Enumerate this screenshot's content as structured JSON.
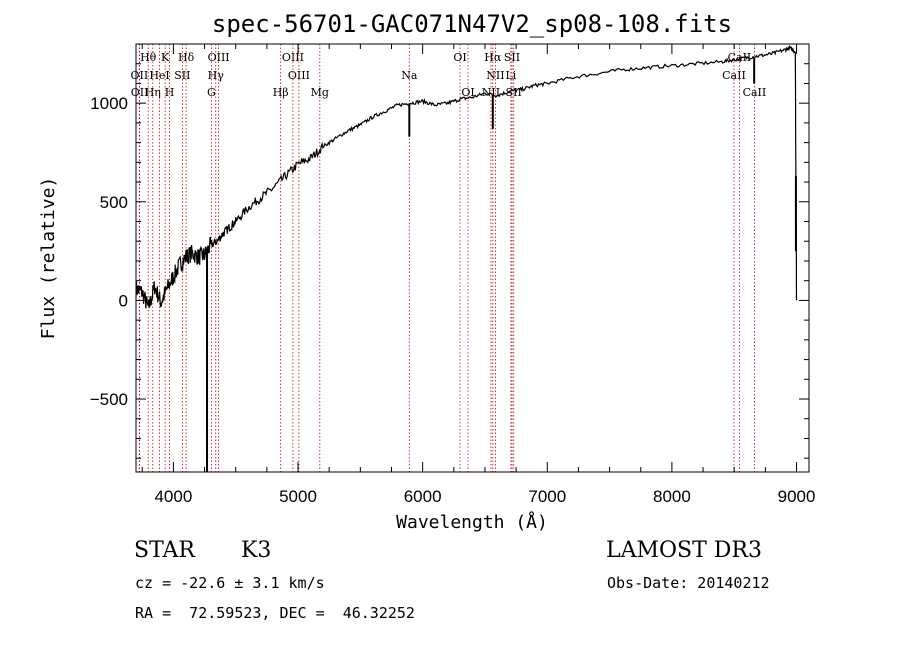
{
  "chart_data": {
    "type": "line",
    "title": "spec-56701-GAC071N47V2_sp08-108.fits",
    "xlabel": "Wavelength (Å)",
    "ylabel": "Flux (relative)",
    "xlim": [
      3700,
      9100
    ],
    "ylim": [
      -870,
      1300
    ],
    "xticks": [
      4000,
      5000,
      6000,
      7000,
      8000,
      9000
    ],
    "yticks": [
      -500,
      0,
      500,
      1000
    ],
    "series": [
      {
        "name": "flux",
        "x": [
          3700,
          3750,
          3800,
          3850,
          3900,
          3950,
          4000,
          4050,
          4100,
          4150,
          4200,
          4250,
          4300,
          4350,
          4400,
          4450,
          4500,
          4600,
          4700,
          4800,
          4900,
          5000,
          5100,
          5200,
          5300,
          5400,
          5500,
          5600,
          5700,
          5800,
          5900,
          6000,
          6100,
          6200,
          6300,
          6400,
          6500,
          6600,
          6700,
          6800,
          6900,
          7000,
          7200,
          7400,
          7600,
          7800,
          8000,
          8200,
          8400,
          8500,
          8600,
          8700,
          8800,
          8900,
          8950,
          8990,
          9000
        ],
        "y": [
          60,
          40,
          -40,
          70,
          -10,
          60,
          120,
          180,
          220,
          240,
          220,
          230,
          280,
          300,
          340,
          370,
          400,
          470,
          520,
          570,
          630,
          690,
          720,
          780,
          820,
          860,
          890,
          930,
          960,
          990,
          1000,
          1010,
          990,
          1000,
          1020,
          1030,
          1050,
          1040,
          1060,
          1070,
          1090,
          1100,
          1130,
          1150,
          1170,
          1180,
          1190,
          1200,
          1210,
          1220,
          1230,
          1240,
          1250,
          1270,
          1280,
          1260,
          0
        ]
      }
    ],
    "spikes": [
      {
        "x": 4270,
        "y": -870
      },
      {
        "x": 5893,
        "y": 830
      },
      {
        "x": 6563,
        "y": 870
      },
      {
        "x": 8660,
        "y": 1100
      },
      {
        "x": 8995,
        "y": 250
      }
    ],
    "spectral_lines": [
      {
        "label": "Hθ",
        "x": 3798,
        "row": 1
      },
      {
        "label": "K",
        "x": 3934,
        "row": 1
      },
      {
        "label": "Hδ",
        "x": 4102,
        "row": 1
      },
      {
        "label": "OIII",
        "x": 4363,
        "row": 1
      },
      {
        "label": "OIII",
        "x": 4959,
        "row": 1
      },
      {
        "label": "OI",
        "x": 6300,
        "row": 1
      },
      {
        "label": "Hα",
        "x": 6563,
        "row": 1
      },
      {
        "label": "SII",
        "x": 6717,
        "row": 1
      },
      {
        "label": "CaII",
        "x": 8542,
        "row": 1
      },
      {
        "label": "OII",
        "x": 3727,
        "row": 2
      },
      {
        "label": "HeI",
        "x": 3889,
        "row": 2
      },
      {
        "label": "SII",
        "x": 4072,
        "row": 2
      },
      {
        "label": "Hγ",
        "x": 4340,
        "row": 2
      },
      {
        "label": "OIII",
        "x": 5007,
        "row": 2
      },
      {
        "label": "Na",
        "x": 5893,
        "row": 2
      },
      {
        "label": "NII",
        "x": 6584,
        "row": 2
      },
      {
        "label": "Li",
        "x": 6708,
        "row": 2
      },
      {
        "label": "CaII",
        "x": 8498,
        "row": 2
      },
      {
        "label": "OII",
        "x": 3729,
        "row": 3
      },
      {
        "label": "Hη",
        "x": 3835,
        "row": 3
      },
      {
        "label": "H",
        "x": 3969,
        "row": 3
      },
      {
        "label": "G",
        "x": 4305,
        "row": 3
      },
      {
        "label": "Hβ",
        "x": 4861,
        "row": 3
      },
      {
        "label": "Mg",
        "x": 5175,
        "row": 3
      },
      {
        "label": "OI",
        "x": 6364,
        "row": 3
      },
      {
        "label": "NII",
        "x": 6548,
        "row": 3
      },
      {
        "label": "SII",
        "x": 6731,
        "row": 3
      },
      {
        "label": "CaII",
        "x": 8662,
        "row": 3
      }
    ]
  },
  "info": {
    "object_type": "STAR",
    "subclass": "K3",
    "survey": "LAMOST DR3",
    "cz": "cz = -22.6 ± 3.1 km/s",
    "obs_date": "Obs-Date: 20140212",
    "coords": "RA =  72.59523, DEC =  46.32252"
  }
}
